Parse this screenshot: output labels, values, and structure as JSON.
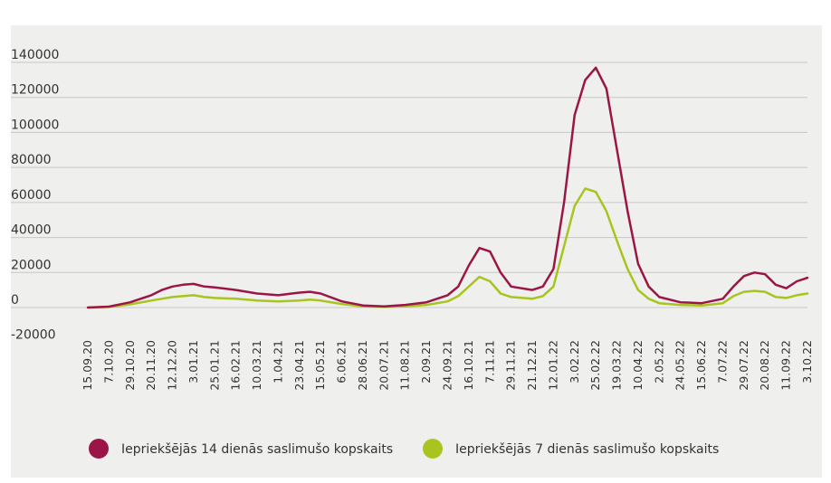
{
  "chart_data": {
    "type": "line",
    "title": "",
    "xlabel": "",
    "ylabel": "",
    "ylim": [
      -20000,
      140000
    ],
    "y_ticks": [
      140000,
      120000,
      100000,
      80000,
      60000,
      40000,
      20000,
      0,
      -20000
    ],
    "y_tick_labels": [
      "140000",
      "120000",
      "100000",
      "80000",
      "60000",
      "40000",
      "20000",
      "0",
      "-20000"
    ],
    "grid": true,
    "legend_position": "bottom",
    "x_labels": [
      "15.09.20",
      "7.10.20",
      "29.10.20",
      "20.11.20",
      "12.12.20",
      "3.01.21",
      "25.01.21",
      "16.02.21",
      "10.03.21",
      "1.04.21",
      "23.04.21",
      "15.05.21",
      "6.06.21",
      "28.06.21",
      "20.07.21",
      "11.08.21",
      "2.09.21",
      "24.09.21",
      "16.10.21",
      "7.11.21",
      "29.11.21",
      "21.12.21",
      "12.01.22",
      "3.02.22",
      "25.02.22",
      "19.03.22",
      "10.04.22",
      "2.05.22",
      "24.05.22",
      "15.06.22",
      "7.07.22",
      "29.07.22",
      "20.08.22",
      "11.09.22",
      "3.10.22"
    ],
    "x_label_days": [
      0,
      22,
      44,
      66,
      88,
      110,
      132,
      154,
      176,
      198,
      220,
      242,
      264,
      286,
      308,
      330,
      352,
      374,
      396,
      418,
      440,
      462,
      484,
      506,
      528,
      550,
      572,
      594,
      616,
      638,
      660,
      682,
      704,
      726,
      748
    ],
    "x": [
      "2020-09-15",
      "2020-10-07",
      "2020-10-29",
      "2020-11-20",
      "2020-12-01",
      "2020-12-12",
      "2020-12-23",
      "2021-01-03",
      "2021-01-14",
      "2021-01-25",
      "2021-02-16",
      "2021-03-10",
      "2021-04-01",
      "2021-04-23",
      "2021-05-04",
      "2021-05-15",
      "2021-06-06",
      "2021-06-28",
      "2021-07-20",
      "2021-08-11",
      "2021-09-02",
      "2021-09-24",
      "2021-10-05",
      "2021-10-16",
      "2021-10-27",
      "2021-11-07",
      "2021-11-18",
      "2021-11-29",
      "2021-12-21",
      "2022-01-01",
      "2022-01-12",
      "2022-01-23",
      "2022-02-03",
      "2022-02-14",
      "2022-02-25",
      "2022-03-08",
      "2022-03-19",
      "2022-03-30",
      "2022-04-10",
      "2022-04-21",
      "2022-05-02",
      "2022-05-24",
      "2022-06-15",
      "2022-07-07",
      "2022-07-18",
      "2022-07-29",
      "2022-08-09",
      "2022-08-20",
      "2022-08-31",
      "2022-09-11",
      "2022-09-22",
      "2022-10-03"
    ],
    "x_days": [
      0,
      22,
      44,
      66,
      77,
      88,
      99,
      110,
      121,
      132,
      154,
      176,
      198,
      220,
      231,
      242,
      264,
      286,
      308,
      330,
      352,
      374,
      385,
      396,
      407,
      418,
      429,
      440,
      462,
      473,
      484,
      495,
      506,
      517,
      528,
      539,
      550,
      561,
      572,
      583,
      594,
      616,
      638,
      660,
      671,
      682,
      693,
      704,
      715,
      726,
      737,
      748
    ],
    "series": [
      {
        "name": "Iepriekšējās 14 dienās saslimušo kopskaits",
        "color": "#9b1646",
        "values": [
          0,
          500,
          3000,
          7000,
          10000,
          12000,
          13000,
          13500,
          12000,
          11500,
          10000,
          8000,
          7000,
          8500,
          9000,
          8000,
          3500,
          1200,
          600,
          1500,
          3000,
          7000,
          12000,
          24000,
          34000,
          32000,
          20000,
          12000,
          10000,
          12000,
          22000,
          60000,
          110000,
          130000,
          137000,
          125000,
          90000,
          55000,
          25000,
          12000,
          6000,
          3000,
          2500,
          5000,
          12000,
          18000,
          20000,
          19000,
          13000,
          11000,
          15000,
          17000
        ]
      },
      {
        "name": "Iepriekšējās 7 dienās saslimušo kopskaits",
        "color": "#a8c41e",
        "values": [
          0,
          300,
          1800,
          4000,
          5000,
          6000,
          6500,
          7000,
          6000,
          5500,
          5000,
          4000,
          3500,
          4000,
          4500,
          4000,
          2000,
          600,
          300,
          700,
          1500,
          3500,
          6500,
          12000,
          17500,
          15000,
          8000,
          6000,
          5000,
          6500,
          12000,
          35000,
          58000,
          68000,
          66000,
          55000,
          38000,
          22000,
          10000,
          5000,
          2500,
          1500,
          1200,
          2500,
          6500,
          9000,
          9500,
          9000,
          6000,
          5500,
          7000,
          8000
        ]
      }
    ]
  }
}
